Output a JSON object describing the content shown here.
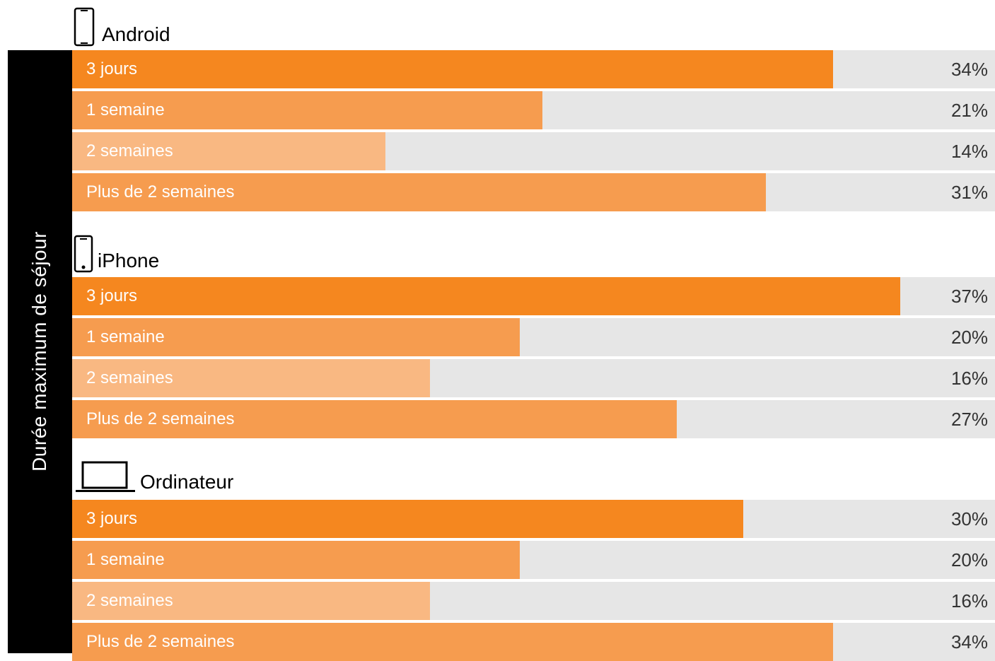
{
  "chart_data": {
    "type": "bar",
    "orientation": "horizontal",
    "axis_label": "Durée maximum de séjour",
    "xlim": [
      0,
      37
    ],
    "categories": [
      "3 jours",
      "1 semaine",
      "2 semaines",
      "Plus de 2 semaines"
    ],
    "category_colors": [
      "#f5871f",
      "#f69c4f",
      "#f9b882",
      "#f69c4f"
    ],
    "track_color": "#e6e6e6",
    "groups": [
      {
        "name": "Android",
        "icon": "android-phone-icon",
        "values": [
          34,
          21,
          14,
          31
        ],
        "value_labels": [
          "34%",
          "21%",
          "14%",
          "31%"
        ]
      },
      {
        "name": "iPhone",
        "icon": "iphone-icon",
        "values": [
          37,
          20,
          16,
          27
        ],
        "value_labels": [
          "37%",
          "20%",
          "16%",
          "27%"
        ]
      },
      {
        "name": "Ordinateur",
        "icon": "laptop-icon",
        "values": [
          30,
          20,
          16,
          34
        ],
        "value_labels": [
          "30%",
          "20%",
          "16%",
          "34%"
        ]
      }
    ]
  }
}
